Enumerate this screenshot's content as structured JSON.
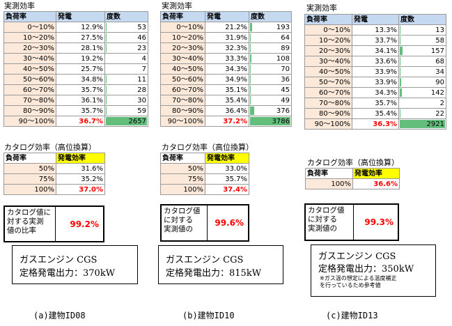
{
  "panels": [
    {
      "measured_title": "実測効率",
      "headers": [
        "負荷率",
        "発電",
        "度数"
      ],
      "rows": [
        {
          "range": "0～10%",
          "eff": "12.9%",
          "count": "53",
          "bar": 0.02
        },
        {
          "range": "10～20%",
          "eff": "27.5%",
          "count": "46",
          "bar": 0.017
        },
        {
          "range": "20～30%",
          "eff": "28.1%",
          "count": "23",
          "bar": 0.009
        },
        {
          "range": "30～40%",
          "eff": "19.2%",
          "count": "4",
          "bar": 0.0
        },
        {
          "range": "40～50%",
          "eff": "25.7%",
          "count": "7",
          "bar": 0.0
        },
        {
          "range": "50～60%",
          "eff": "34.8%",
          "count": "11",
          "bar": 0.004
        },
        {
          "range": "60～70%",
          "eff": "35.7%",
          "count": "28",
          "bar": 0.011
        },
        {
          "range": "70～80%",
          "eff": "36.1%",
          "count": "30",
          "bar": 0.011
        },
        {
          "range": "80～90%",
          "eff": "35.7%",
          "count": "59",
          "bar": 0.022
        },
        {
          "range": "90～100%",
          "eff": "36.7%",
          "count": "2657",
          "bar": 1.0,
          "highlight": true
        }
      ],
      "catalog_title": "カタログ効率（高位換算）",
      "catalog_headers": [
        "負荷率",
        "発電効率"
      ],
      "catalog_rows": [
        {
          "load": "50%",
          "eff": "31.6%"
        },
        {
          "load": "75%",
          "eff": "35.2%"
        },
        {
          "load": "100%",
          "eff": "37.0%",
          "highlight": true
        }
      ],
      "ratio_lines": [
        "カタログ値に",
        "対する実測",
        "値の比率"
      ],
      "ratio_value": "99.2%",
      "cgs_line1": "ガスエンジン CGS",
      "cgs_line2": "定格発電出力：370kW",
      "cgs_note": [],
      "caption": "(a)建物ID08"
    },
    {
      "measured_title": "実測効率",
      "headers": [
        "負荷率",
        "発電",
        "度数"
      ],
      "rows": [
        {
          "range": "0～10%",
          "eff": "21.2%",
          "count": "193",
          "bar": 0.05
        },
        {
          "range": "10～20%",
          "eff": "31.9%",
          "count": "64",
          "bar": 0.017
        },
        {
          "range": "20～30%",
          "eff": "32.3%",
          "count": "89",
          "bar": 0.024
        },
        {
          "range": "30～40%",
          "eff": "33.3%",
          "count": "108",
          "bar": 0.029
        },
        {
          "range": "40～50%",
          "eff": "34.3%",
          "count": "70",
          "bar": 0.018
        },
        {
          "range": "50～60%",
          "eff": "34.9%",
          "count": "36",
          "bar": 0.01
        },
        {
          "range": "60～70%",
          "eff": "35.1%",
          "count": "45",
          "bar": 0.012
        },
        {
          "range": "70～80%",
          "eff": "35.4%",
          "count": "49",
          "bar": 0.013
        },
        {
          "range": "80～90%",
          "eff": "36.4%",
          "count": "376",
          "bar": 0.1
        },
        {
          "range": "90～100%",
          "eff": "37.2%",
          "count": "3786",
          "bar": 1.0,
          "highlight": true
        }
      ],
      "catalog_title": "カタログ効率（高位換算）",
      "catalog_headers": [
        "負荷率",
        "発電効率"
      ],
      "catalog_rows": [
        {
          "load": "50%",
          "eff": "33.0%"
        },
        {
          "load": "75%",
          "eff": "35.7%"
        },
        {
          "load": "100%",
          "eff": "37.4%",
          "highlight": true
        }
      ],
      "ratio_lines": [
        "カタログ値",
        "に対する",
        "実測値の"
      ],
      "ratio_value": "99.6%",
      "cgs_line1": "ガスエンジン CGS",
      "cgs_line2": "定格発電出力：815kW",
      "cgs_note": [],
      "caption": "(b)建物ID10"
    },
    {
      "measured_title": "実測効率",
      "headers": [
        "負荷率",
        "発電",
        "度数"
      ],
      "rows": [
        {
          "range": "0～10%",
          "eff": "13.3%",
          "count": "13",
          "bar": 0.004
        },
        {
          "range": "10～20%",
          "eff": "33.7%",
          "count": "58",
          "bar": 0.02
        },
        {
          "range": "20～30%",
          "eff": "34.1%",
          "count": "157",
          "bar": 0.054
        },
        {
          "range": "30～40%",
          "eff": "33.6%",
          "count": "68",
          "bar": 0.023
        },
        {
          "range": "40～50%",
          "eff": "33.9%",
          "count": "34",
          "bar": 0.012
        },
        {
          "range": "50～70%",
          "eff": "33.9%",
          "count": "90",
          "bar": 0.031
        },
        {
          "range": "60～70%",
          "eff": "34.3%",
          "count": "142",
          "bar": 0.049
        },
        {
          "range": "70～80%",
          "eff": "35.7%",
          "count": "2",
          "bar": 0.0
        },
        {
          "range": "80～90%",
          "eff": "35.4%",
          "count": "22",
          "bar": 0.008
        },
        {
          "range": "90～100%",
          "eff": "36.3%",
          "count": "2921",
          "bar": 1.0,
          "highlight": true
        }
      ],
      "catalog_title": "カタログ効率（高位換算）",
      "catalog_headers": [
        "負荷率",
        "発電効率"
      ],
      "catalog_rows": [
        {
          "load": "100%",
          "eff": "36.6%",
          "highlight": true
        }
      ],
      "ratio_lines": [
        "カタログ値",
        "に対する",
        "実測値の"
      ],
      "ratio_value": "99.3%",
      "cgs_line1": "ガスエンジン CGS",
      "cgs_line2": "定格発電出力：350kW",
      "cgs_note": [
        "※ガス温の想定による温度補正",
        "を行っているため参考値"
      ],
      "caption": "(c)建物ID13"
    }
  ]
}
